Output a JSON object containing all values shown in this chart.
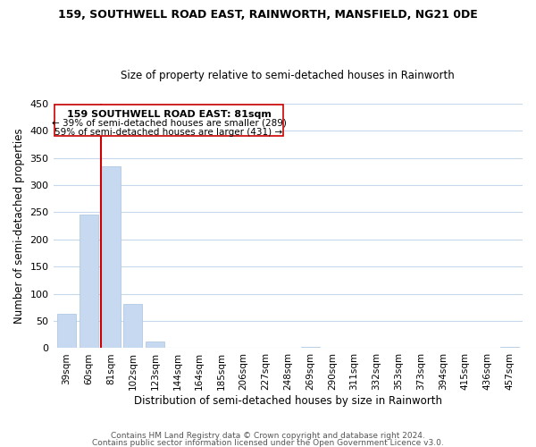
{
  "title": "159, SOUTHWELL ROAD EAST, RAINWORTH, MANSFIELD, NG21 0DE",
  "subtitle": "Size of property relative to semi-detached houses in Rainworth",
  "xlabel": "Distribution of semi-detached houses by size in Rainworth",
  "ylabel": "Number of semi-detached properties",
  "bin_labels": [
    "39sqm",
    "60sqm",
    "81sqm",
    "102sqm",
    "123sqm",
    "144sqm",
    "164sqm",
    "185sqm",
    "206sqm",
    "227sqm",
    "248sqm",
    "269sqm",
    "290sqm",
    "311sqm",
    "332sqm",
    "353sqm",
    "373sqm",
    "394sqm",
    "415sqm",
    "436sqm",
    "457sqm"
  ],
  "bar_heights": [
    63,
    245,
    335,
    82,
    13,
    0,
    0,
    0,
    0,
    0,
    0,
    2,
    0,
    0,
    0,
    0,
    0,
    0,
    0,
    0,
    2
  ],
  "property_bin_index": 2,
  "annotation_line1": "159 SOUTHWELL ROAD EAST: 81sqm",
  "annotation_line2": "← 39% of semi-detached houses are smaller (289)",
  "annotation_line3": "59% of semi-detached houses are larger (431) →",
  "red_line_color": "#cc0000",
  "bar_color": "#c6d9f0",
  "bar_edge_color": "#a8c4e0",
  "ylim": [
    0,
    450
  ],
  "yticks": [
    0,
    50,
    100,
    150,
    200,
    250,
    300,
    350,
    400,
    450
  ],
  "footer1": "Contains HM Land Registry data © Crown copyright and database right 2024.",
  "footer2": "Contains public sector information licensed under the Open Government Licence v3.0.",
  "bg_color": "#ffffff",
  "grid_color": "#c8d8ec"
}
